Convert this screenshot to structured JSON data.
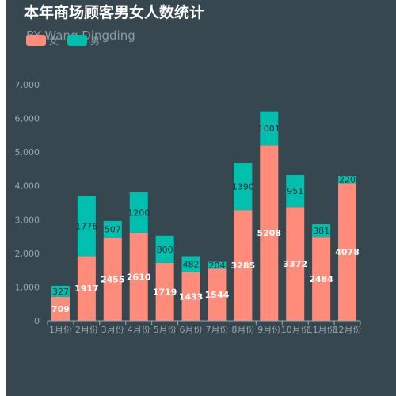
{
  "chart_data": {
    "type": "bar",
    "stacked": true,
    "title": "本年商场顾客男女人数统计",
    "subtitle": "BY Wang Dingding",
    "categories": [
      "1月份",
      "2月份",
      "3月份",
      "4月份",
      "5月份",
      "6月份",
      "7月份",
      "8月份",
      "9月份",
      "10月份",
      "11月份",
      "12月份"
    ],
    "series": [
      {
        "name": "女",
        "color": "#ff8c7a",
        "values": [
          709,
          1917,
          2455,
          2610,
          1719,
          1433,
          1544,
          3285,
          5208,
          3372,
          2484,
          4078
        ]
      },
      {
        "name": "男",
        "color": "#00bfae",
        "values": [
          327,
          1776,
          507,
          1200,
          800,
          482,
          204,
          1390,
          1001,
          951,
          381,
          220
        ]
      }
    ],
    "yticks": [
      "0",
      "1,000",
      "2,000",
      "3,000",
      "4,000",
      "5,000",
      "6,000",
      "7,000"
    ],
    "ylim": [
      0,
      7000
    ],
    "legend_position": "top-left",
    "grid": false
  },
  "colors": {
    "background": "#37474f",
    "title": "#ffffff",
    "subtitle": "#8c9aa1",
    "axis": "#9aa6ac",
    "inside_label_female": "#ffffff",
    "inside_label_male": "#1f2a30"
  }
}
